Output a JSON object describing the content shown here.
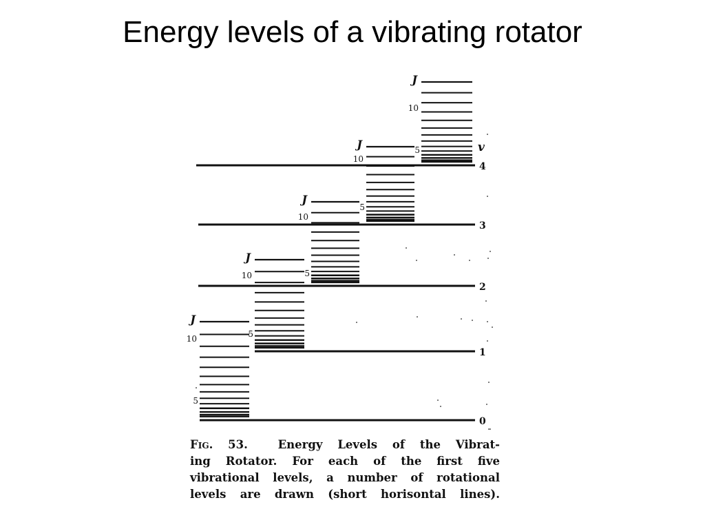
{
  "slide": {
    "title": "Energy levels of a vibrating rotator"
  },
  "figure": {
    "vibrational_levels": [
      {
        "v": 0,
        "label": "0"
      },
      {
        "v": 1,
        "label": "1"
      },
      {
        "v": 2,
        "label": "2"
      },
      {
        "v": 3,
        "label": "3"
      },
      {
        "v": 4,
        "label": "4"
      }
    ],
    "v_axis_label": "v",
    "rotational_label_j": "J",
    "rotational_label_ten": "10",
    "rotational_label_five": "5"
  },
  "caption": {
    "fig_number": "Fig. 53.",
    "line1_rest": "Energy Levels of the Vibrat-",
    "line2": "ing Rotator.  For each of the first five",
    "line3": "vibrational levels, a number of rotational",
    "line4": "levels are drawn  (short horisontal lines)."
  }
}
